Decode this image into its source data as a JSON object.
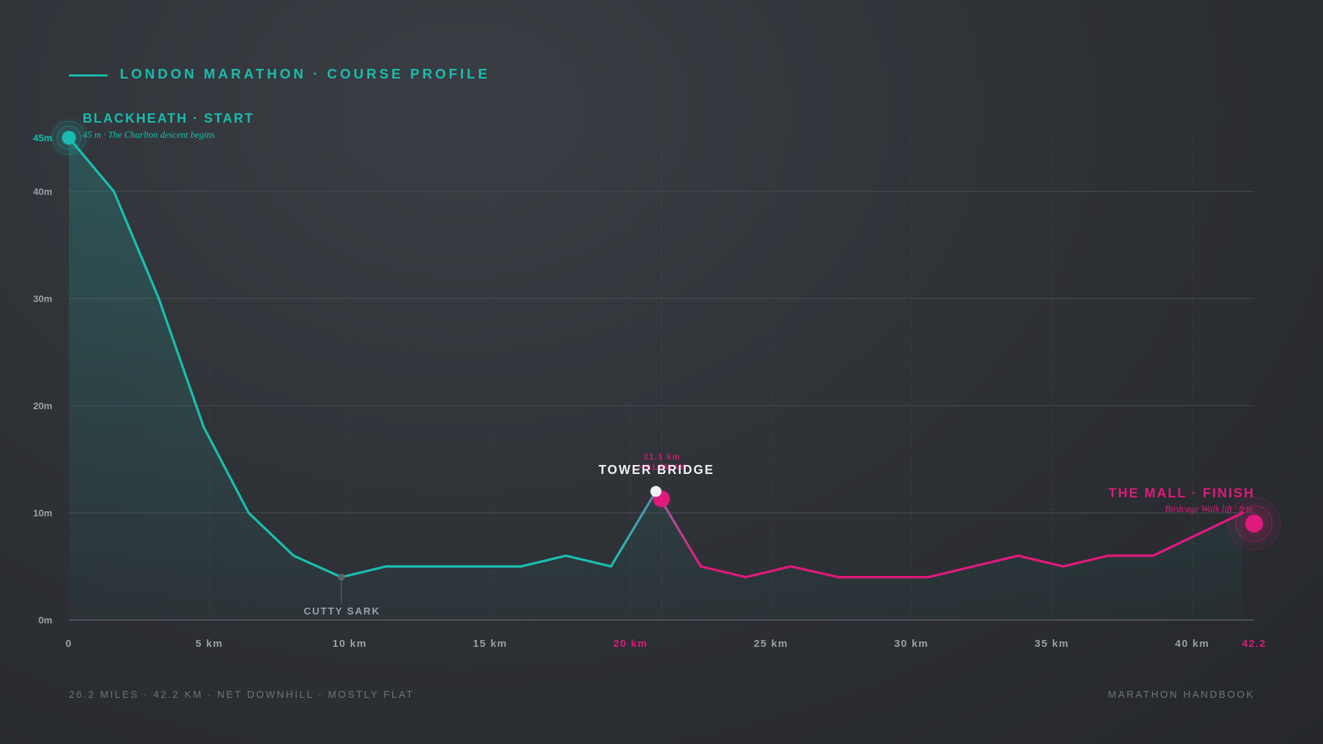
{
  "header": {
    "title": "LONDON MARATHON · COURSE PROFILE"
  },
  "footer": {
    "left": "26.2 MILES · 42.2 KM · NET DOWNHILL · MOSTLY FLAT",
    "right": "MARATHON HANDBOOK"
  },
  "colors": {
    "first_half": "#19bdb0",
    "second_half": "#e0197d",
    "grid": "#4a4e54",
    "tick_label": "#9aa0a6",
    "highlight_label": "#e0197d"
  },
  "chart_data": {
    "type": "area",
    "title": "LONDON MARATHON · COURSE PROFILE",
    "xlabel": "",
    "ylabel": "",
    "xlim": [
      0,
      42.2
    ],
    "ylim": [
      0,
      45
    ],
    "grid": true,
    "x_ticks": [
      {
        "value": 0,
        "label": "0"
      },
      {
        "value": 5,
        "label": "5 km"
      },
      {
        "value": 10,
        "label": "10 km"
      },
      {
        "value": 15,
        "label": "15 km"
      },
      {
        "value": 20,
        "label": "20 km",
        "highlight": true
      },
      {
        "value": 25,
        "label": "25 km"
      },
      {
        "value": 30,
        "label": "30 km"
      },
      {
        "value": 35,
        "label": "35 km"
      },
      {
        "value": 40,
        "label": "40 km"
      },
      {
        "value": 42.2,
        "label": "42.2",
        "highlight": true
      }
    ],
    "y_ticks": [
      {
        "value": 0,
        "label": "0m"
      },
      {
        "value": 10,
        "label": "10m"
      },
      {
        "value": 20,
        "label": "20m"
      },
      {
        "value": 30,
        "label": "30m"
      },
      {
        "value": 40,
        "label": "40m"
      },
      {
        "value": 45,
        "label": "45m"
      }
    ],
    "halfway_km": 21.1,
    "series": [
      {
        "x": [
          0,
          1.6,
          3.2,
          4.8,
          6.4,
          8.0,
          9.7,
          11.3,
          12.9,
          14.5,
          16.1,
          17.7,
          19.3,
          20.9,
          22.5,
          24.1,
          25.7,
          27.4,
          29.0,
          30.6,
          32.2,
          33.8,
          35.4,
          37.0,
          38.6,
          40.2,
          41.8
        ],
        "values": [
          45,
          40,
          30,
          18,
          10,
          6,
          4,
          5,
          5,
          5,
          5,
          6,
          5,
          12,
          5,
          4,
          5,
          4,
          4,
          4,
          5,
          6,
          5,
          6,
          6,
          8,
          10
        ]
      }
    ],
    "annotations": [
      {
        "id": "start",
        "x": 0,
        "y": 45,
        "label": "BLACKHEATH · START",
        "sublabel": "45 m · The Charlton descent begins"
      },
      {
        "id": "cutty",
        "x": 9.7,
        "y": 4,
        "label": "CUTTY SARK"
      },
      {
        "id": "tower",
        "x": 20.9,
        "y": 12,
        "label": "TOWER BRIDGE"
      },
      {
        "id": "half",
        "x": 21.1,
        "y": 11.3,
        "label": "21.1 km",
        "sublabel": "HALFWAY"
      },
      {
        "id": "finish",
        "x": 42.2,
        "y": 9,
        "label": "THE MALL · FINISH",
        "sublabel": "Birdcage Walk lift · 9 m"
      }
    ]
  }
}
